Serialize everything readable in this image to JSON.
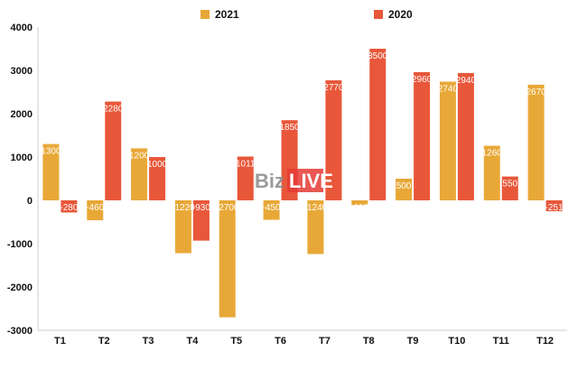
{
  "chart_data": {
    "type": "bar",
    "categories": [
      "T1",
      "T2",
      "T3",
      "T4",
      "T5",
      "T6",
      "T7",
      "T8",
      "T9",
      "T10",
      "T11",
      "T12"
    ],
    "series": [
      {
        "name": "2021",
        "color": "#E8A838",
        "values": [
          1300,
          -460,
          1200,
          -1220,
          -2700,
          -450,
          -1240,
          -110,
          500,
          2740,
          1260,
          2670
        ]
      },
      {
        "name": "2020",
        "color": "#E8573A",
        "values": [
          -280,
          2280,
          1000,
          -930,
          1011,
          1850,
          2770,
          3500,
          2960,
          2940,
          550,
          -251
        ]
      }
    ],
    "ylim": [
      -3000,
      4000
    ],
    "yticks": [
      "4000",
      "3000",
      "2000",
      "1000",
      "0",
      "-1000",
      "-2000",
      "-3000"
    ],
    "grid": false,
    "legend_position": "top"
  },
  "watermark": {
    "text_biz": "Biz",
    "text_live": "LIVE",
    "colors": {
      "biz": "#888888",
      "live_bg": "#E53935"
    }
  }
}
